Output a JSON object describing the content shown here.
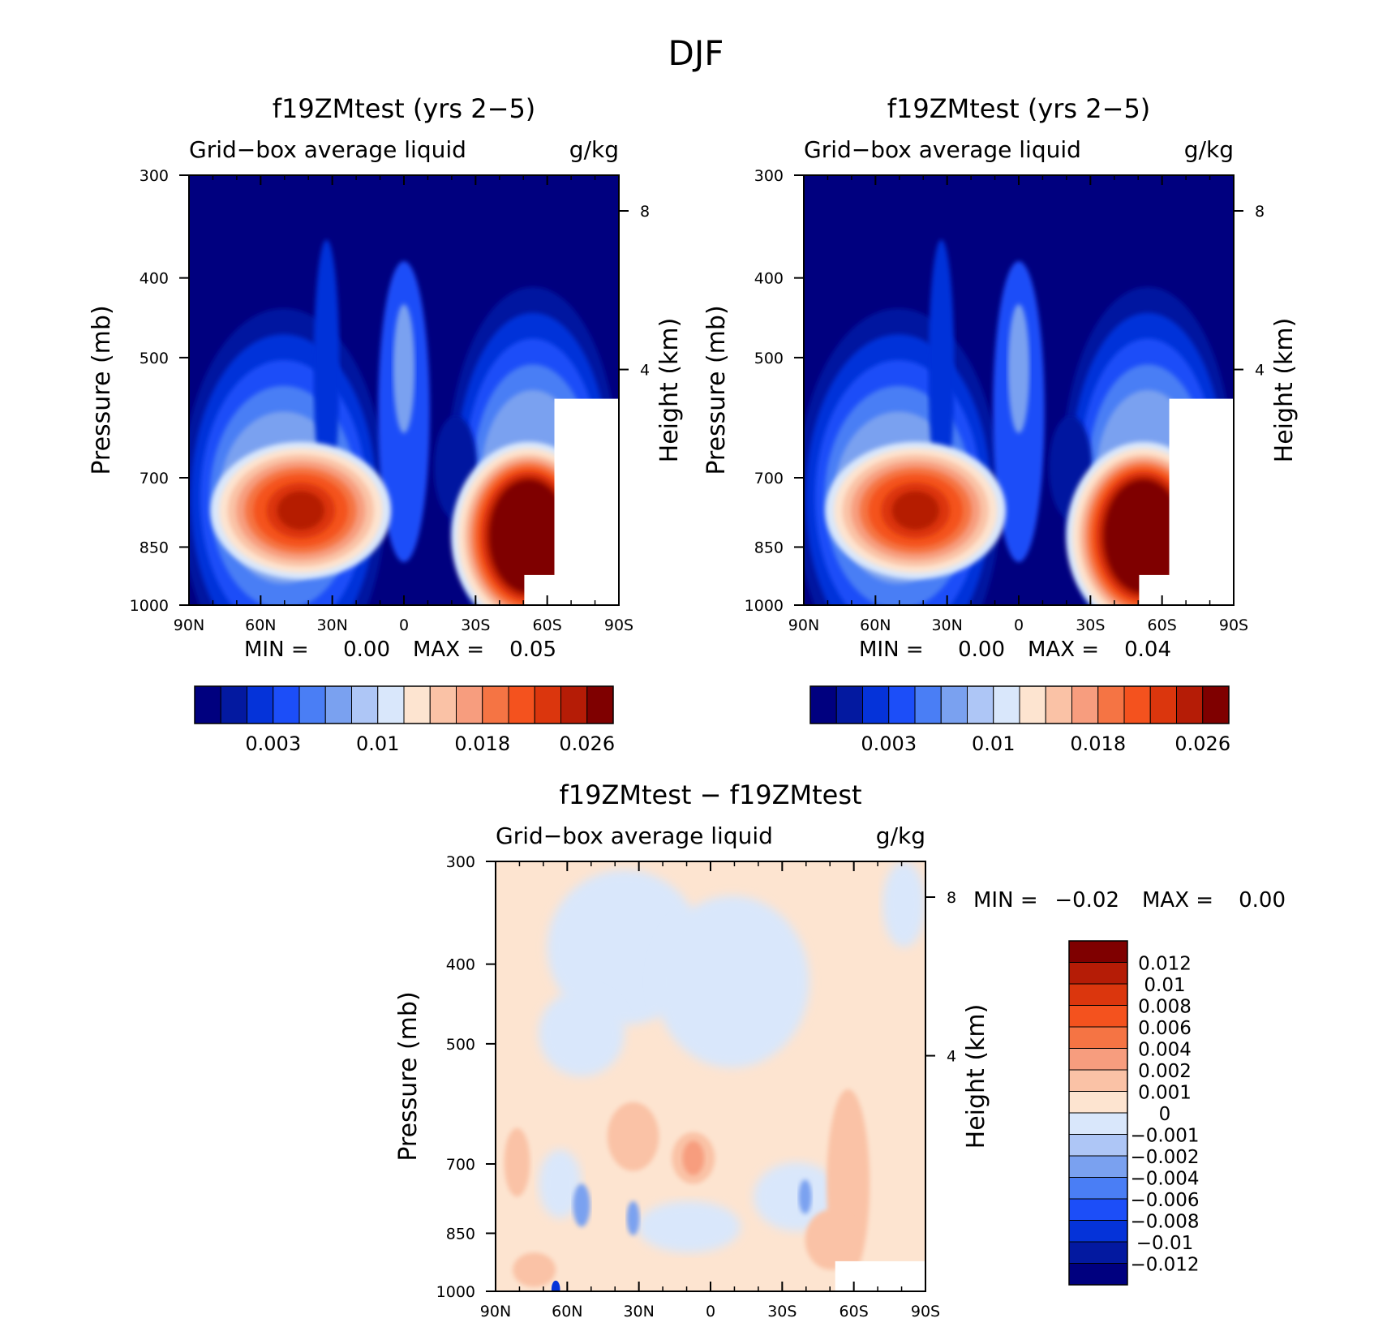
{
  "figure": {
    "title": "DJF"
  },
  "chart_data": [
    {
      "type": "heatmap",
      "title": "f19ZMtest (yrs 2−5)",
      "subtitle_left": "Grid−box average liquid",
      "subtitle_right": "g/kg",
      "ylabel": "Pressure (mb)",
      "ylabel_right": "Height (km)",
      "x_ticks": [
        "90N",
        "60N",
        "30N",
        "0",
        "30S",
        "60S",
        "90S"
      ],
      "y_ticks": [
        "300",
        "400",
        "500",
        "700",
        "850",
        "1000"
      ],
      "y_ticks_right": [
        "8",
        "4"
      ],
      "ylim": [
        300,
        1000
      ],
      "min_label": "MIN =",
      "min_value": "0.00",
      "max_label": "MAX =",
      "max_value": "0.05",
      "colorbar_labels": [
        "0.003",
        "0.01",
        "0.018",
        "0.026"
      ]
    },
    {
      "type": "heatmap",
      "title": "f19ZMtest (yrs 2−5)",
      "subtitle_left": "Grid−box average liquid",
      "subtitle_right": "g/kg",
      "ylabel": "Pressure (mb)",
      "ylabel_right": "Height (km)",
      "x_ticks": [
        "90N",
        "60N",
        "30N",
        "0",
        "30S",
        "60S",
        "90S"
      ],
      "y_ticks": [
        "300",
        "400",
        "500",
        "700",
        "850",
        "1000"
      ],
      "y_ticks_right": [
        "8",
        "4"
      ],
      "ylim": [
        300,
        1000
      ],
      "min_label": "MIN =",
      "min_value": "0.00",
      "max_label": "MAX =",
      "max_value": "0.04",
      "colorbar_labels": [
        "0.003",
        "0.01",
        "0.018",
        "0.026"
      ]
    },
    {
      "type": "heatmap",
      "title": "f19ZMtest − f19ZMtest",
      "subtitle_left": "Grid−box average liquid",
      "subtitle_right": "g/kg",
      "ylabel": "Pressure (mb)",
      "ylabel_right": "Height (km)",
      "x_ticks": [
        "90N",
        "60N",
        "30N",
        "0",
        "30S",
        "60S",
        "90S"
      ],
      "y_ticks": [
        "300",
        "400",
        "500",
        "700",
        "850",
        "1000"
      ],
      "y_ticks_right": [
        "8",
        "4"
      ],
      "ylim": [
        300,
        1000
      ],
      "min_label": "MIN =",
      "min_value": "−0.02",
      "max_label": "MAX =",
      "max_value": "0.00",
      "colorbar_labels": [
        "0.012",
        "0.01",
        "0.008",
        "0.006",
        "0.004",
        "0.002",
        "0.001",
        "0",
        "−0.001",
        "−0.002",
        "−0.004",
        "−0.006",
        "−0.008",
        "−0.01",
        "−0.012"
      ]
    }
  ],
  "colors": {
    "level_colors": [
      "#00007f",
      "#0319a0",
      "#0533d9",
      "#1c4ef8",
      "#4a7ef5",
      "#7aa1f0",
      "#aec6f6",
      "#d9e7fb",
      "#fde4d0",
      "#fac2a6",
      "#f79d7e",
      "#f57444",
      "#f4521e",
      "#db360d",
      "#b51c06",
      "#7f0000"
    ],
    "diff_colors": [
      "#7f0000",
      "#b51c06",
      "#db360d",
      "#f4521e",
      "#f57444",
      "#f79d7e",
      "#fac2a6",
      "#fde4d0",
      "#d9e7fb",
      "#aec6f6",
      "#7aa1f0",
      "#4a7ef5",
      "#1c4ef8",
      "#0533d9",
      "#0319a0",
      "#00007f"
    ]
  }
}
